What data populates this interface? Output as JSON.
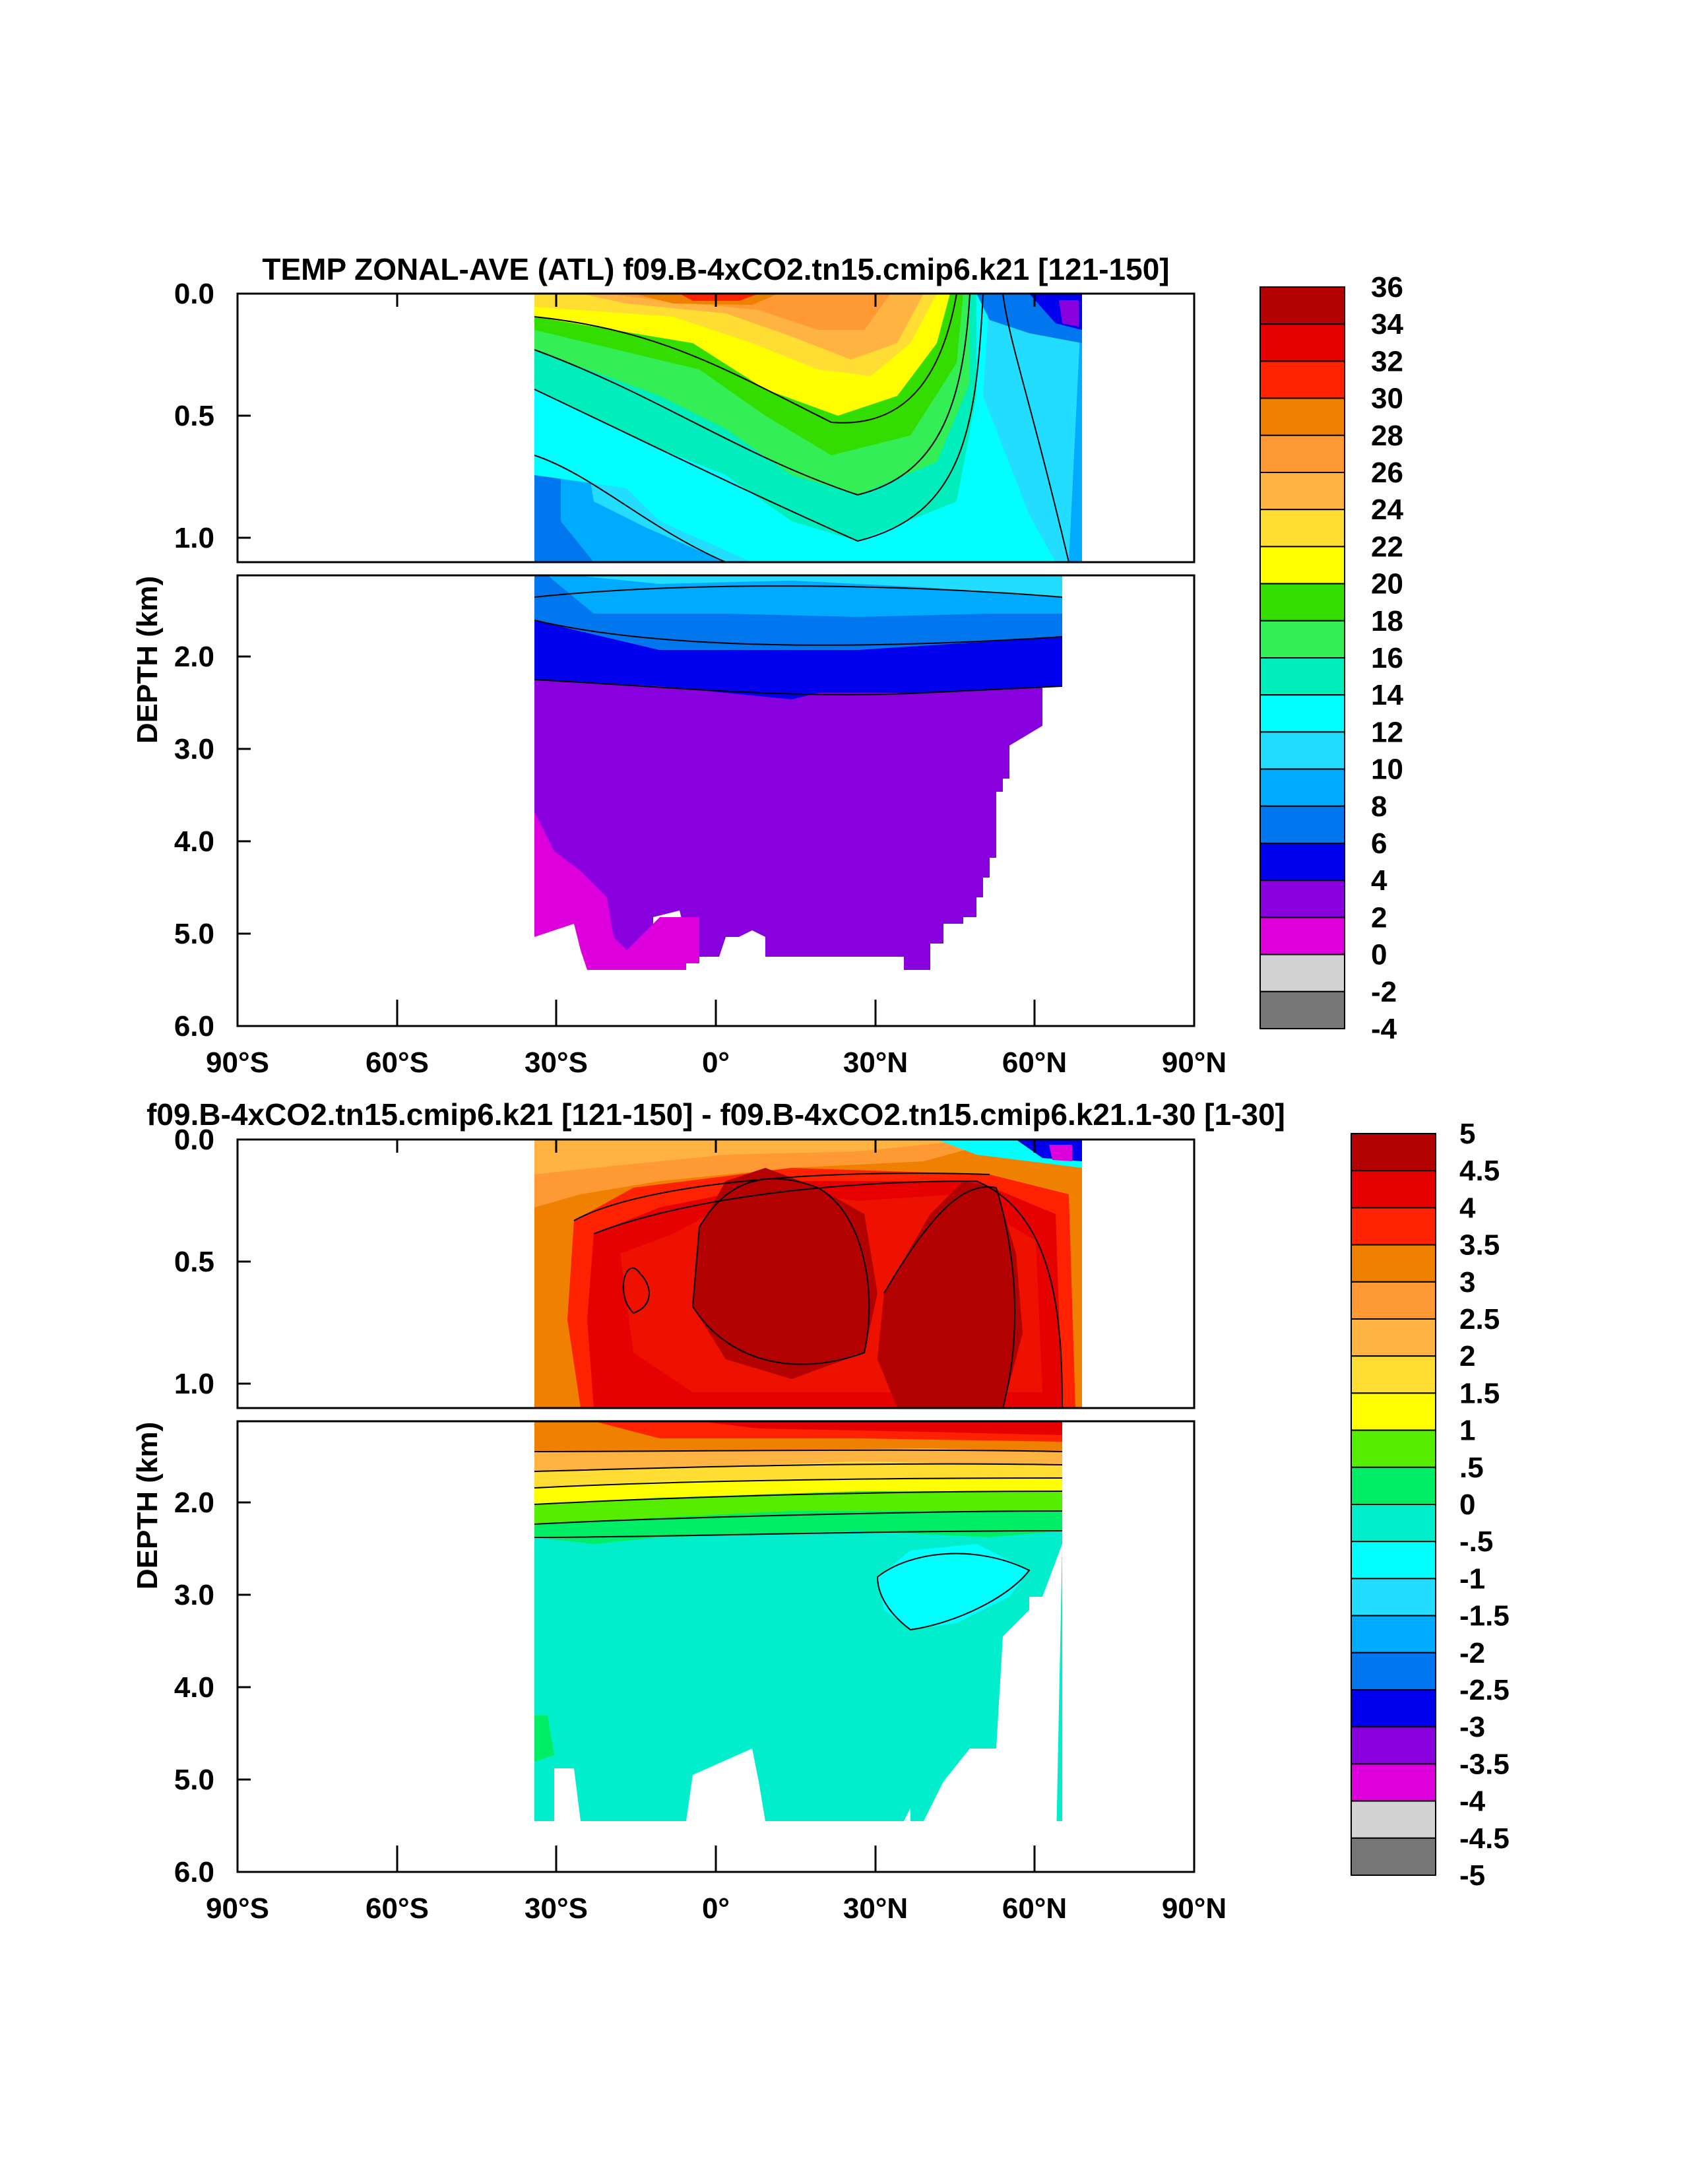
{
  "chart_data": [
    {
      "type": "contour",
      "title": "TEMP ZONAL-AVE (ATL) f09.B-4xCO2.tn15.cmip6.k21 [121-150]",
      "ylabel": "DEPTH (km)",
      "xlabel": "",
      "x_ticks": [
        -90,
        -60,
        -30,
        0,
        30,
        60,
        90
      ],
      "x_tick_labels": [
        "90°S",
        "60°S",
        "30°S",
        "0°",
        "30°N",
        "60°N",
        "90°N"
      ],
      "upper_panel": {
        "y_range": [
          0.0,
          1.1
        ],
        "y_ticks": [
          0.0,
          0.5,
          1.0
        ],
        "y_tick_labels": [
          "0.0",
          "0.5",
          "1.0"
        ]
      },
      "lower_panel": {
        "y_range": [
          1.1,
          6.0
        ],
        "y_ticks": [
          2.0,
          3.0,
          4.0,
          5.0,
          6.0
        ],
        "y_tick_labels": [
          "2.0",
          "3.0",
          "4.0",
          "5.0",
          "6.0"
        ]
      },
      "data_extent_lat": [
        -34,
        68
      ],
      "colorbar": {
        "labels": [
          "36",
          "34",
          "32",
          "30",
          "28",
          "26",
          "24",
          "22",
          "20",
          "18",
          "16",
          "14",
          "12",
          "10",
          "8",
          "6",
          "4",
          "2",
          "0",
          "-2",
          "-4"
        ],
        "colors": [
          "#b30000",
          "#e60000",
          "#ff2200",
          "#f08000",
          "#ff9933",
          "#ffb340",
          "#ffdd33",
          "#ffff00",
          "#33dd00",
          "#33ee55",
          "#00eebb",
          "#00ffff",
          "#22ddff",
          "#00aaff",
          "#0077ee",
          "#0000ee",
          "#8800dd",
          "#dd00dd",
          "#d3d3d3",
          "#777777"
        ]
      }
    },
    {
      "type": "contour",
      "title": "f09.B-4xCO2.tn15.cmip6.k21 [121-150] - f09.B-4xCO2.tn15.cmip6.k21.1-30 [1-30]",
      "ylabel": "DEPTH (km)",
      "xlabel": "",
      "x_ticks": [
        -90,
        -60,
        -30,
        0,
        30,
        60,
        90
      ],
      "x_tick_labels": [
        "90°S",
        "60°S",
        "30°S",
        "0°",
        "30°N",
        "60°N",
        "90°N"
      ],
      "upper_panel": {
        "y_range": [
          0.0,
          1.1
        ],
        "y_ticks": [
          0.0,
          0.5,
          1.0
        ],
        "y_tick_labels": [
          "0.0",
          "0.5",
          "1.0"
        ]
      },
      "lower_panel": {
        "y_range": [
          1.1,
          6.0
        ],
        "y_ticks": [
          2.0,
          3.0,
          4.0,
          5.0,
          6.0
        ],
        "y_tick_labels": [
          "2.0",
          "3.0",
          "4.0",
          "5.0",
          "6.0"
        ]
      },
      "data_extent_lat": [
        -34,
        68
      ],
      "colorbar": {
        "labels": [
          "5",
          "4.5",
          "4",
          "3.5",
          "3",
          "2.5",
          "2",
          "1.5",
          "1",
          ".5",
          "0",
          "-.5",
          "-1",
          "-1.5",
          "-2",
          "-2.5",
          "-3",
          "-3.5",
          "-4",
          "-4.5",
          "-5"
        ],
        "colors": [
          "#b30000",
          "#e60000",
          "#ff2200",
          "#f08000",
          "#ff9933",
          "#ffb340",
          "#ffdd33",
          "#ffff00",
          "#55ee00",
          "#00ee66",
          "#00eecc",
          "#00ffff",
          "#22ddff",
          "#00aaff",
          "#0077ee",
          "#0000ee",
          "#8800dd",
          "#dd00dd",
          "#d3d3d3",
          "#777777"
        ]
      }
    }
  ]
}
